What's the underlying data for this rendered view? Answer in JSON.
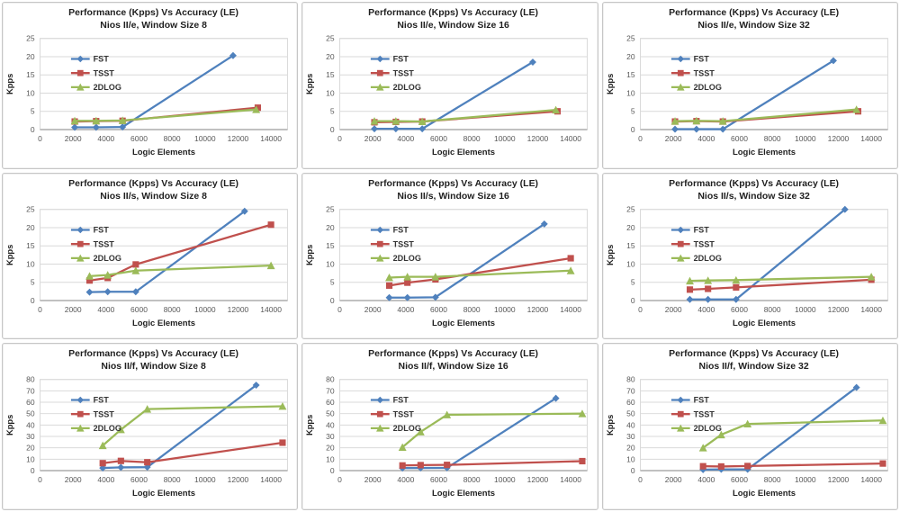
{
  "page": {
    "description": "Grid of nine performance-vs-accuracy line charts for Nios II soft processors"
  },
  "palette": {
    "fst_blue": "#4F81BD",
    "tsst_red": "#C0504D",
    "dlog_green": "#9BBB59",
    "gridline": "#D9D9D9",
    "axis_line": "#9C9C9C",
    "panel_border": "#C6C6C6",
    "title_text": "#1F1F1F",
    "tick_text": "#595959"
  },
  "chart_data": [
    {
      "type": "line",
      "title": "Performance (Kpps) Vs Accuracy (LE)",
      "subtitle": "Nios II/e, Window Size 8",
      "xlabel": "Logic Elements",
      "ylabel": "Kpps",
      "xlim": [
        0,
        15000
      ],
      "ylim": [
        0,
        25
      ],
      "xticks": [
        0,
        2000,
        4000,
        6000,
        8000,
        10000,
        12000,
        14000
      ],
      "yticks": [
        0,
        5,
        10,
        15,
        20,
        25
      ],
      "grid": "horizontal",
      "legend_position": "upper-left-inside",
      "series": [
        {
          "name": "FST",
          "color": "#4F81BD",
          "marker": "diamond",
          "points": [
            [
              2100,
              0.6
            ],
            [
              3400,
              0.6
            ],
            [
              5000,
              0.7
            ],
            [
              11700,
              20.3
            ]
          ]
        },
        {
          "name": "TSST",
          "color": "#C0504D",
          "marker": "square",
          "points": [
            [
              2100,
              2.2
            ],
            [
              3400,
              2.3
            ],
            [
              5000,
              2.4
            ],
            [
              13200,
              6.0
            ]
          ]
        },
        {
          "name": "2DLOG",
          "color": "#9BBB59",
          "marker": "triangle",
          "points": [
            [
              2100,
              2.4
            ],
            [
              3400,
              2.4
            ],
            [
              5000,
              2.5
            ],
            [
              13100,
              5.5
            ]
          ]
        }
      ]
    },
    {
      "type": "line",
      "title": "Performance (Kpps) Vs Accuracy (LE)",
      "subtitle": "Nios II/e, Window Size 16",
      "xlabel": "Logic Elements",
      "ylabel": "Kpps",
      "xlim": [
        0,
        15000
      ],
      "ylim": [
        0,
        25
      ],
      "xticks": [
        0,
        2000,
        4000,
        6000,
        8000,
        10000,
        12000,
        14000
      ],
      "yticks": [
        0,
        5,
        10,
        15,
        20,
        25
      ],
      "grid": "horizontal",
      "legend_position": "upper-left-inside",
      "series": [
        {
          "name": "FST",
          "color": "#4F81BD",
          "marker": "diamond",
          "points": [
            [
              2100,
              0.2
            ],
            [
              3400,
              0.2
            ],
            [
              5000,
              0.2
            ],
            [
              11700,
              18.5
            ]
          ]
        },
        {
          "name": "TSST",
          "color": "#C0504D",
          "marker": "square",
          "points": [
            [
              2100,
              2.0
            ],
            [
              3400,
              2.1
            ],
            [
              5000,
              2.2
            ],
            [
              13200,
              5.0
            ]
          ]
        },
        {
          "name": "2DLOG",
          "color": "#9BBB59",
          "marker": "triangle",
          "points": [
            [
              2100,
              2.3
            ],
            [
              3400,
              2.3
            ],
            [
              5000,
              2.2
            ],
            [
              13100,
              5.4
            ]
          ]
        }
      ]
    },
    {
      "type": "line",
      "title": "Performance (Kpps) Vs Accuracy (LE)",
      "subtitle": "Nios II/e, Window Size 32",
      "xlabel": "Logic Elements",
      "ylabel": "Kpps",
      "xlim": [
        0,
        15000
      ],
      "ylim": [
        0,
        25
      ],
      "xticks": [
        0,
        2000,
        4000,
        6000,
        8000,
        10000,
        12000,
        14000
      ],
      "yticks": [
        0,
        5,
        10,
        15,
        20,
        25
      ],
      "grid": "horizontal",
      "legend_position": "upper-left-inside",
      "series": [
        {
          "name": "FST",
          "color": "#4F81BD",
          "marker": "diamond",
          "points": [
            [
              2100,
              0.1
            ],
            [
              3400,
              0.1
            ],
            [
              5000,
              0.1
            ],
            [
              11700,
              18.9
            ]
          ]
        },
        {
          "name": "TSST",
          "color": "#C0504D",
          "marker": "square",
          "points": [
            [
              2100,
              2.2
            ],
            [
              3400,
              2.3
            ],
            [
              5000,
              2.2
            ],
            [
              13200,
              5.0
            ]
          ]
        },
        {
          "name": "2DLOG",
          "color": "#9BBB59",
          "marker": "triangle",
          "points": [
            [
              2100,
              2.3
            ],
            [
              3400,
              2.4
            ],
            [
              5000,
              2.3
            ],
            [
              13100,
              5.5
            ]
          ]
        }
      ]
    },
    {
      "type": "line",
      "title": "Performance (Kpps) Vs Accuracy (LE)",
      "subtitle": "Nios II/s, Window Size 8",
      "xlabel": "Logic Elements",
      "ylabel": "Kpps",
      "xlim": [
        0,
        15000
      ],
      "ylim": [
        0,
        25
      ],
      "xticks": [
        0,
        2000,
        4000,
        6000,
        8000,
        10000,
        12000,
        14000
      ],
      "yticks": [
        0,
        5,
        10,
        15,
        20,
        25
      ],
      "grid": "horizontal",
      "legend_position": "upper-left-inside",
      "series": [
        {
          "name": "FST",
          "color": "#4F81BD",
          "marker": "diamond",
          "points": [
            [
              3000,
              2.3
            ],
            [
              4100,
              2.4
            ],
            [
              5800,
              2.4
            ],
            [
              12400,
              24.5
            ]
          ]
        },
        {
          "name": "TSST",
          "color": "#C0504D",
          "marker": "square",
          "points": [
            [
              3000,
              5.5
            ],
            [
              4100,
              6.2
            ],
            [
              5800,
              9.9
            ],
            [
              14000,
              20.8
            ]
          ]
        },
        {
          "name": "2DLOG",
          "color": "#9BBB59",
          "marker": "triangle",
          "points": [
            [
              3000,
              6.7
            ],
            [
              4100,
              7.0
            ],
            [
              5800,
              8.2
            ],
            [
              14000,
              9.6
            ]
          ]
        }
      ]
    },
    {
      "type": "line",
      "title": "Performance (Kpps) Vs Accuracy (LE)",
      "subtitle": "Nios II/s, Window Size 16",
      "xlabel": "Logic Elements",
      "ylabel": "Kpps",
      "xlim": [
        0,
        15000
      ],
      "ylim": [
        0,
        25
      ],
      "xticks": [
        0,
        2000,
        4000,
        6000,
        8000,
        10000,
        12000,
        14000
      ],
      "yticks": [
        0,
        5,
        10,
        15,
        20,
        25
      ],
      "grid": "horizontal",
      "legend_position": "upper-left-inside",
      "series": [
        {
          "name": "FST",
          "color": "#4F81BD",
          "marker": "diamond",
          "points": [
            [
              3000,
              0.8
            ],
            [
              4100,
              0.8
            ],
            [
              5800,
              0.9
            ],
            [
              12400,
              21.0
            ]
          ]
        },
        {
          "name": "TSST",
          "color": "#C0504D",
          "marker": "square",
          "points": [
            [
              3000,
              4.1
            ],
            [
              4100,
              4.9
            ],
            [
              5800,
              5.8
            ],
            [
              14000,
              11.6
            ]
          ]
        },
        {
          "name": "2DLOG",
          "color": "#9BBB59",
          "marker": "triangle",
          "points": [
            [
              3000,
              6.3
            ],
            [
              4100,
              6.5
            ],
            [
              5800,
              6.5
            ],
            [
              14000,
              8.2
            ]
          ]
        }
      ]
    },
    {
      "type": "line",
      "title": "Performance (Kpps) Vs Accuracy (LE)",
      "subtitle": "Nios II/s, Window Size 32",
      "xlabel": "Logic Elements",
      "ylabel": "Kpps",
      "xlim": [
        0,
        15000
      ],
      "ylim": [
        0,
        25
      ],
      "xticks": [
        0,
        2000,
        4000,
        6000,
        8000,
        10000,
        12000,
        14000
      ],
      "yticks": [
        0,
        5,
        10,
        15,
        20,
        25
      ],
      "grid": "horizontal",
      "legend_position": "upper-left-inside",
      "series": [
        {
          "name": "FST",
          "color": "#4F81BD",
          "marker": "diamond",
          "points": [
            [
              3000,
              0.3
            ],
            [
              4100,
              0.3
            ],
            [
              5800,
              0.3
            ],
            [
              12400,
              25.0
            ]
          ]
        },
        {
          "name": "TSST",
          "color": "#C0504D",
          "marker": "square",
          "points": [
            [
              3000,
              3.0
            ],
            [
              4100,
              3.2
            ],
            [
              5800,
              3.6
            ],
            [
              14000,
              5.7
            ]
          ]
        },
        {
          "name": "2DLOG",
          "color": "#9BBB59",
          "marker": "triangle",
          "points": [
            [
              3000,
              5.4
            ],
            [
              4100,
              5.5
            ],
            [
              5800,
              5.6
            ],
            [
              14000,
              6.5
            ]
          ]
        }
      ]
    },
    {
      "type": "line",
      "title": "Performance (Kpps) Vs Accuracy (LE)",
      "subtitle": "Nios II/f, Window Size 8",
      "xlabel": "Logic Elements",
      "ylabel": "Kpps",
      "xlim": [
        0,
        15000
      ],
      "ylim": [
        0,
        80
      ],
      "xticks": [
        0,
        2000,
        4000,
        6000,
        8000,
        10000,
        12000,
        14000
      ],
      "yticks": [
        0,
        10,
        20,
        30,
        40,
        50,
        60,
        70,
        80
      ],
      "grid": "horizontal",
      "legend_position": "upper-left-inside",
      "series": [
        {
          "name": "FST",
          "color": "#4F81BD",
          "marker": "diamond",
          "points": [
            [
              3800,
              2.3
            ],
            [
              4900,
              2.8
            ],
            [
              6500,
              3.0
            ],
            [
              13100,
              75.0
            ]
          ]
        },
        {
          "name": "TSST",
          "color": "#C0504D",
          "marker": "square",
          "points": [
            [
              3800,
              6.5
            ],
            [
              4900,
              8.5
            ],
            [
              6500,
              7.3
            ],
            [
              14700,
              24.5
            ]
          ]
        },
        {
          "name": "2DLOG",
          "color": "#9BBB59",
          "marker": "triangle",
          "points": [
            [
              3800,
              22.0
            ],
            [
              4900,
              36.0
            ],
            [
              6500,
              54.0
            ],
            [
              14700,
              56.5
            ]
          ]
        }
      ]
    },
    {
      "type": "line",
      "title": "Performance (Kpps) Vs Accuracy (LE)",
      "subtitle": "Nios II/f, Window Size 16",
      "xlabel": "Logic Elements",
      "ylabel": "Kpps",
      "xlim": [
        0,
        15000
      ],
      "ylim": [
        0,
        80
      ],
      "xticks": [
        0,
        2000,
        4000,
        6000,
        8000,
        10000,
        12000,
        14000
      ],
      "yticks": [
        0,
        10,
        20,
        30,
        40,
        50,
        60,
        70,
        80
      ],
      "grid": "horizontal",
      "legend_position": "upper-left-inside",
      "series": [
        {
          "name": "FST",
          "color": "#4F81BD",
          "marker": "diamond",
          "points": [
            [
              3800,
              2.2
            ],
            [
              4900,
              2.3
            ],
            [
              6500,
              2.4
            ],
            [
              13100,
              63.5
            ]
          ]
        },
        {
          "name": "TSST",
          "color": "#C0504D",
          "marker": "square",
          "points": [
            [
              3800,
              4.5
            ],
            [
              4900,
              4.8
            ],
            [
              6500,
              5.0
            ],
            [
              14700,
              8.3
            ]
          ]
        },
        {
          "name": "2DLOG",
          "color": "#9BBB59",
          "marker": "triangle",
          "points": [
            [
              3800,
              20.5
            ],
            [
              4900,
              34.0
            ],
            [
              6500,
              49.0
            ],
            [
              14700,
              50.0
            ]
          ]
        }
      ]
    },
    {
      "type": "line",
      "title": "Performance (Kpps) Vs Accuracy (LE)",
      "subtitle": "Nios II/f, Window Size 32",
      "xlabel": "Logic Elements",
      "ylabel": "Kpps",
      "xlim": [
        0,
        15000
      ],
      "ylim": [
        0,
        80
      ],
      "xticks": [
        0,
        2000,
        4000,
        6000,
        8000,
        10000,
        12000,
        14000
      ],
      "yticks": [
        0,
        10,
        20,
        30,
        40,
        50,
        60,
        70,
        80
      ],
      "grid": "horizontal",
      "legend_position": "upper-left-inside",
      "series": [
        {
          "name": "FST",
          "color": "#4F81BD",
          "marker": "diamond",
          "points": [
            [
              3800,
              0.9
            ],
            [
              4900,
              1.1
            ],
            [
              6500,
              1.1
            ],
            [
              13100,
              73.0
            ]
          ]
        },
        {
          "name": "TSST",
          "color": "#C0504D",
          "marker": "square",
          "points": [
            [
              3800,
              3.8
            ],
            [
              4900,
              3.6
            ],
            [
              6500,
              4.0
            ],
            [
              14700,
              6.2
            ]
          ]
        },
        {
          "name": "2DLOG",
          "color": "#9BBB59",
          "marker": "triangle",
          "points": [
            [
              3800,
              20.0
            ],
            [
              4900,
              31.5
            ],
            [
              6500,
              41.0
            ],
            [
              14700,
              44.0
            ]
          ]
        }
      ]
    }
  ]
}
